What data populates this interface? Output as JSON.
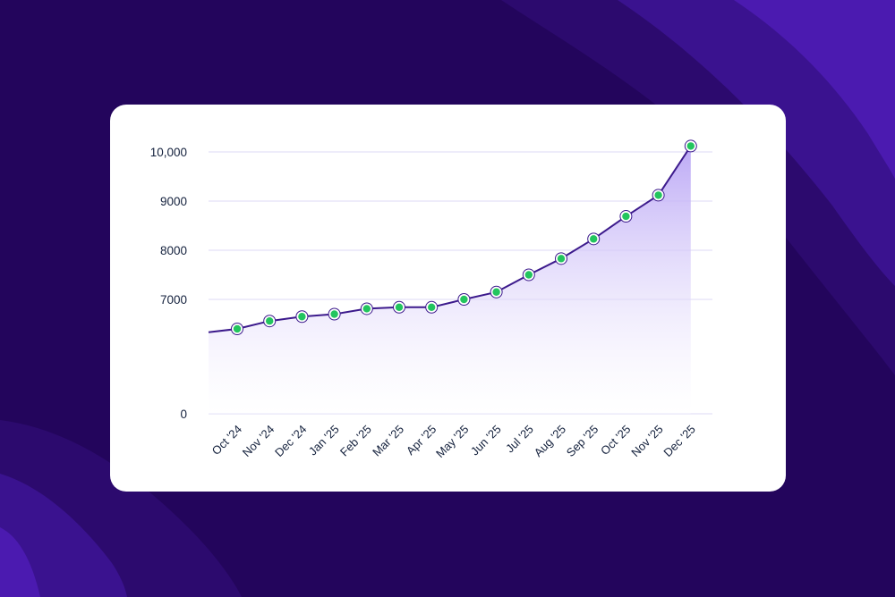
{
  "colors": {
    "background": "#23055c",
    "background_wave": "#3a128f",
    "card": "#ffffff",
    "line": "#3c1a8c",
    "area_top": "#b9a5f5",
    "marker_fill": "#22c55e",
    "grid": "#dcd8f5",
    "text": "#14213d"
  },
  "chart_data": {
    "type": "area",
    "title": "",
    "xlabel": "",
    "ylabel": "",
    "categories": [
      "Oct '24",
      "Nov '24",
      "Dec '24",
      "Jan '25",
      "Feb '25",
      "Mar '25",
      "Apr '25",
      "May '25",
      "Jun '25",
      "Jul '25",
      "Aug '25",
      "Sep '25",
      "Oct '25",
      "Nov '25",
      "Dec '25"
    ],
    "values": [
      6400,
      6560,
      6650,
      6700,
      6810,
      6840,
      6840,
      7000,
      7150,
      7500,
      7830,
      8230,
      8690,
      9120,
      10120
    ],
    "lead_in_value": 6330,
    "y_ticks": [
      {
        "value": 0,
        "label": "0"
      },
      {
        "value": 7000,
        "label": "7000"
      },
      {
        "value": 8000,
        "label": "8000"
      },
      {
        "value": 9000,
        "label": "9000"
      },
      {
        "value": 10000,
        "label": "10,000"
      }
    ],
    "y_axis_break": [
      0,
      6000
    ],
    "ylim": [
      6000,
      10000
    ],
    "grid": true,
    "legend": "none",
    "markers": true
  }
}
